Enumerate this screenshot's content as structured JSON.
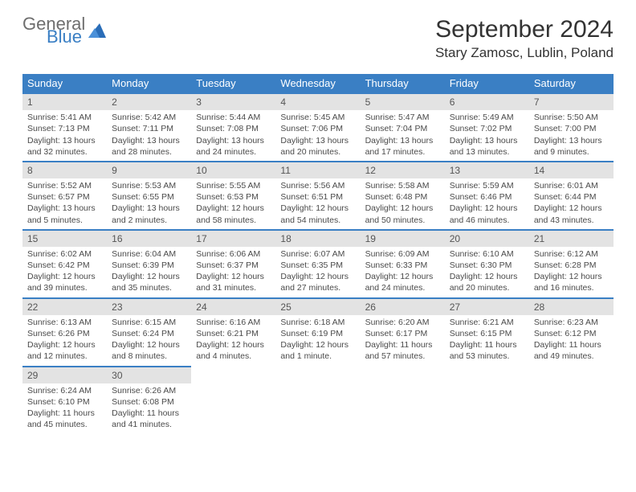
{
  "brand": {
    "general": "General",
    "blue": "Blue"
  },
  "title": "September 2024",
  "location": "Stary Zamosc, Lublin, Poland",
  "weekdays": [
    "Sunday",
    "Monday",
    "Tuesday",
    "Wednesday",
    "Thursday",
    "Friday",
    "Saturday"
  ],
  "colors": {
    "header_bg": "#3a7fc4",
    "daynum_bg": "#e3e3e3",
    "border": "#3a7fc4"
  },
  "days": [
    {
      "n": "1",
      "sunrise": "Sunrise: 5:41 AM",
      "sunset": "Sunset: 7:13 PM",
      "daylight": "Daylight: 13 hours and 32 minutes."
    },
    {
      "n": "2",
      "sunrise": "Sunrise: 5:42 AM",
      "sunset": "Sunset: 7:11 PM",
      "daylight": "Daylight: 13 hours and 28 minutes."
    },
    {
      "n": "3",
      "sunrise": "Sunrise: 5:44 AM",
      "sunset": "Sunset: 7:08 PM",
      "daylight": "Daylight: 13 hours and 24 minutes."
    },
    {
      "n": "4",
      "sunrise": "Sunrise: 5:45 AM",
      "sunset": "Sunset: 7:06 PM",
      "daylight": "Daylight: 13 hours and 20 minutes."
    },
    {
      "n": "5",
      "sunrise": "Sunrise: 5:47 AM",
      "sunset": "Sunset: 7:04 PM",
      "daylight": "Daylight: 13 hours and 17 minutes."
    },
    {
      "n": "6",
      "sunrise": "Sunrise: 5:49 AM",
      "sunset": "Sunset: 7:02 PM",
      "daylight": "Daylight: 13 hours and 13 minutes."
    },
    {
      "n": "7",
      "sunrise": "Sunrise: 5:50 AM",
      "sunset": "Sunset: 7:00 PM",
      "daylight": "Daylight: 13 hours and 9 minutes."
    },
    {
      "n": "8",
      "sunrise": "Sunrise: 5:52 AM",
      "sunset": "Sunset: 6:57 PM",
      "daylight": "Daylight: 13 hours and 5 minutes."
    },
    {
      "n": "9",
      "sunrise": "Sunrise: 5:53 AM",
      "sunset": "Sunset: 6:55 PM",
      "daylight": "Daylight: 13 hours and 2 minutes."
    },
    {
      "n": "10",
      "sunrise": "Sunrise: 5:55 AM",
      "sunset": "Sunset: 6:53 PM",
      "daylight": "Daylight: 12 hours and 58 minutes."
    },
    {
      "n": "11",
      "sunrise": "Sunrise: 5:56 AM",
      "sunset": "Sunset: 6:51 PM",
      "daylight": "Daylight: 12 hours and 54 minutes."
    },
    {
      "n": "12",
      "sunrise": "Sunrise: 5:58 AM",
      "sunset": "Sunset: 6:48 PM",
      "daylight": "Daylight: 12 hours and 50 minutes."
    },
    {
      "n": "13",
      "sunrise": "Sunrise: 5:59 AM",
      "sunset": "Sunset: 6:46 PM",
      "daylight": "Daylight: 12 hours and 46 minutes."
    },
    {
      "n": "14",
      "sunrise": "Sunrise: 6:01 AM",
      "sunset": "Sunset: 6:44 PM",
      "daylight": "Daylight: 12 hours and 43 minutes."
    },
    {
      "n": "15",
      "sunrise": "Sunrise: 6:02 AM",
      "sunset": "Sunset: 6:42 PM",
      "daylight": "Daylight: 12 hours and 39 minutes."
    },
    {
      "n": "16",
      "sunrise": "Sunrise: 6:04 AM",
      "sunset": "Sunset: 6:39 PM",
      "daylight": "Daylight: 12 hours and 35 minutes."
    },
    {
      "n": "17",
      "sunrise": "Sunrise: 6:06 AM",
      "sunset": "Sunset: 6:37 PM",
      "daylight": "Daylight: 12 hours and 31 minutes."
    },
    {
      "n": "18",
      "sunrise": "Sunrise: 6:07 AM",
      "sunset": "Sunset: 6:35 PM",
      "daylight": "Daylight: 12 hours and 27 minutes."
    },
    {
      "n": "19",
      "sunrise": "Sunrise: 6:09 AM",
      "sunset": "Sunset: 6:33 PM",
      "daylight": "Daylight: 12 hours and 24 minutes."
    },
    {
      "n": "20",
      "sunrise": "Sunrise: 6:10 AM",
      "sunset": "Sunset: 6:30 PM",
      "daylight": "Daylight: 12 hours and 20 minutes."
    },
    {
      "n": "21",
      "sunrise": "Sunrise: 6:12 AM",
      "sunset": "Sunset: 6:28 PM",
      "daylight": "Daylight: 12 hours and 16 minutes."
    },
    {
      "n": "22",
      "sunrise": "Sunrise: 6:13 AM",
      "sunset": "Sunset: 6:26 PM",
      "daylight": "Daylight: 12 hours and 12 minutes."
    },
    {
      "n": "23",
      "sunrise": "Sunrise: 6:15 AM",
      "sunset": "Sunset: 6:24 PM",
      "daylight": "Daylight: 12 hours and 8 minutes."
    },
    {
      "n": "24",
      "sunrise": "Sunrise: 6:16 AM",
      "sunset": "Sunset: 6:21 PM",
      "daylight": "Daylight: 12 hours and 4 minutes."
    },
    {
      "n": "25",
      "sunrise": "Sunrise: 6:18 AM",
      "sunset": "Sunset: 6:19 PM",
      "daylight": "Daylight: 12 hours and 1 minute."
    },
    {
      "n": "26",
      "sunrise": "Sunrise: 6:20 AM",
      "sunset": "Sunset: 6:17 PM",
      "daylight": "Daylight: 11 hours and 57 minutes."
    },
    {
      "n": "27",
      "sunrise": "Sunrise: 6:21 AM",
      "sunset": "Sunset: 6:15 PM",
      "daylight": "Daylight: 11 hours and 53 minutes."
    },
    {
      "n": "28",
      "sunrise": "Sunrise: 6:23 AM",
      "sunset": "Sunset: 6:12 PM",
      "daylight": "Daylight: 11 hours and 49 minutes."
    },
    {
      "n": "29",
      "sunrise": "Sunrise: 6:24 AM",
      "sunset": "Sunset: 6:10 PM",
      "daylight": "Daylight: 11 hours and 45 minutes."
    },
    {
      "n": "30",
      "sunrise": "Sunrise: 6:26 AM",
      "sunset": "Sunset: 6:08 PM",
      "daylight": "Daylight: 11 hours and 41 minutes."
    }
  ],
  "grid": {
    "start_weekday": 0,
    "total_days": 30,
    "rows": 5,
    "cols": 7
  }
}
